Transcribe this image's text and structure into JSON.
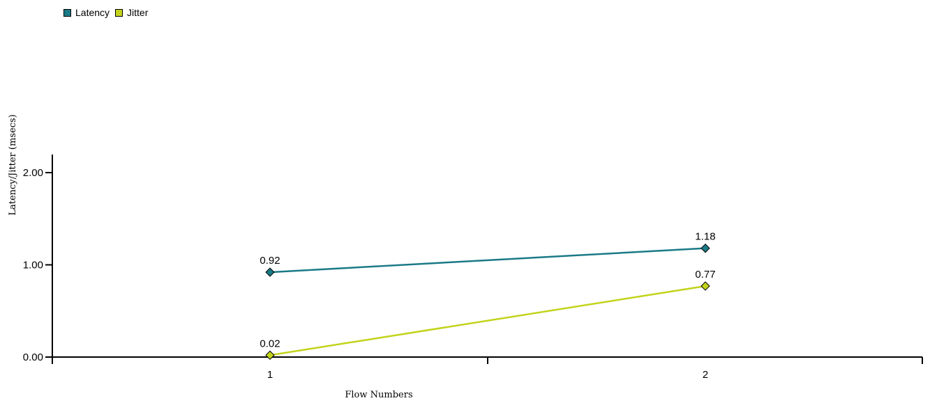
{
  "chart_data": {
    "type": "line",
    "xlabel": "Flow Numbers",
    "ylabel": "Latency/Jitter (msecs)",
    "categories": [
      "1",
      "2"
    ],
    "ylim": [
      0,
      2.2
    ],
    "yticks": [
      "0.00",
      "1.00",
      "2.00"
    ],
    "grid": false,
    "legend_position": "top-left",
    "series": [
      {
        "name": "Latency",
        "color": "#1a7a86",
        "values": [
          0.92,
          1.18
        ],
        "labels": [
          "0.92",
          "1.18"
        ]
      },
      {
        "name": "Jitter",
        "color": "#c2d31a",
        "values": [
          0.02,
          0.77
        ],
        "labels": [
          "0.02",
          "0.77"
        ]
      }
    ]
  }
}
